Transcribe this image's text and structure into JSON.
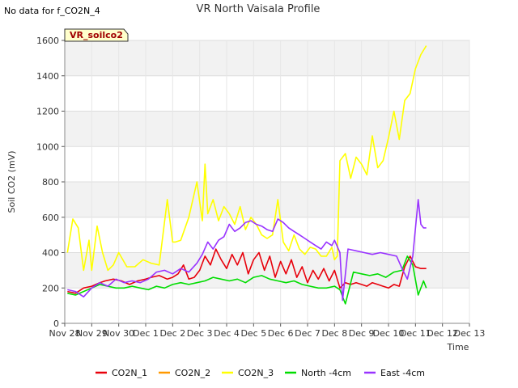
{
  "header": {
    "title": "VR North Vaisala Profile",
    "no_data_note": "No data for f_CO2N_4",
    "badge": "VR_soilco2"
  },
  "chart_data": {
    "type": "line",
    "title": "VR North Vaisala Profile",
    "xlabel": "Time",
    "ylabel": "Soil CO2 (mV)",
    "xlim": [
      "Nov 28",
      "Dec 13"
    ],
    "ylim": [
      0,
      1600
    ],
    "x_ticks": [
      "Nov 28",
      "Nov 29",
      "Nov 30",
      "Dec 1",
      "Dec 2",
      "Dec 3",
      "Dec 4",
      "Dec 5",
      "Dec 6",
      "Dec 7",
      "Dec 8",
      "Dec 9",
      "Dec 10",
      "Dec 11",
      "Dec 12",
      "Dec 13"
    ],
    "y_ticks": [
      0,
      200,
      400,
      600,
      800,
      1000,
      1200,
      1400,
      1600
    ],
    "grid": true,
    "legend_position": "bottom",
    "x_unit": "days since Nov 28",
    "series": [
      {
        "name": "CO2N_1",
        "color": "#e8000b",
        "x": [
          0.1,
          0.4,
          0.7,
          1.0,
          1.3,
          1.5,
          1.8,
          2.1,
          2.4,
          2.7,
          3.0,
          3.2,
          3.5,
          3.8,
          4.0,
          4.2,
          4.4,
          4.6,
          4.8,
          5.0,
          5.2,
          5.4,
          5.6,
          5.8,
          6.0,
          6.2,
          6.4,
          6.6,
          6.8,
          7.0,
          7.2,
          7.4,
          7.6,
          7.8,
          8.0,
          8.2,
          8.4,
          8.6,
          8.8,
          9.0,
          9.2,
          9.4,
          9.6,
          9.8,
          10.0,
          10.2,
          10.4,
          10.6,
          10.8,
          11.0,
          11.2,
          11.4,
          11.6,
          11.8,
          12.0,
          12.2,
          12.4,
          12.6,
          12.8,
          13.0,
          13.2,
          13.4
        ],
        "values": [
          180,
          170,
          200,
          210,
          230,
          240,
          250,
          240,
          220,
          240,
          250,
          260,
          270,
          250,
          260,
          280,
          330,
          250,
          260,
          300,
          380,
          330,
          420,
          360,
          310,
          390,
          330,
          400,
          280,
          360,
          400,
          300,
          380,
          260,
          350,
          280,
          360,
          260,
          320,
          230,
          300,
          250,
          310,
          240,
          300,
          200,
          230,
          220,
          230,
          220,
          210,
          230,
          220,
          210,
          200,
          220,
          210,
          320,
          380,
          320,
          310,
          310
        ]
      },
      {
        "name": "CO2N_2",
        "color": "#ff9900",
        "x": [],
        "values": []
      },
      {
        "name": "CO2N_3",
        "color": "#ffff00",
        "x": [
          0.1,
          0.3,
          0.5,
          0.7,
          0.9,
          1.0,
          1.2,
          1.4,
          1.6,
          1.8,
          2.0,
          2.3,
          2.6,
          2.9,
          3.2,
          3.5,
          3.8,
          4.0,
          4.1,
          4.3,
          4.6,
          4.9,
          5.1,
          5.2,
          5.3,
          5.5,
          5.7,
          5.9,
          6.1,
          6.3,
          6.5,
          6.7,
          6.9,
          7.1,
          7.3,
          7.5,
          7.7,
          7.9,
          8.1,
          8.3,
          8.5,
          8.7,
          8.9,
          9.1,
          9.3,
          9.5,
          9.7,
          9.9,
          10.0,
          10.1,
          10.2,
          10.4,
          10.6,
          10.8,
          11.0,
          11.2,
          11.4,
          11.6,
          11.8,
          12.0,
          12.2,
          12.4,
          12.6,
          12.8,
          13.0,
          13.2,
          13.4
        ],
        "values": [
          400,
          590,
          540,
          300,
          470,
          300,
          550,
          400,
          300,
          330,
          400,
          320,
          320,
          360,
          340,
          330,
          700,
          460,
          460,
          470,
          600,
          800,
          580,
          900,
          620,
          700,
          580,
          660,
          620,
          560,
          660,
          530,
          600,
          560,
          500,
          480,
          500,
          700,
          460,
          410,
          500,
          420,
          390,
          430,
          420,
          380,
          380,
          430,
          360,
          380,
          920,
          960,
          820,
          940,
          900,
          840,
          1060,
          880,
          920,
          1050,
          1200,
          1040,
          1260,
          1300,
          1440,
          1520,
          1570
        ]
      },
      {
        "name": "North -4cm",
        "color": "#00dd00",
        "x": [
          0.1,
          0.4,
          0.7,
          1.0,
          1.3,
          1.6,
          1.9,
          2.2,
          2.5,
          2.8,
          3.1,
          3.4,
          3.7,
          4.0,
          4.3,
          4.6,
          4.9,
          5.2,
          5.5,
          5.8,
          6.1,
          6.4,
          6.7,
          7.0,
          7.3,
          7.6,
          7.9,
          8.2,
          8.5,
          8.8,
          9.1,
          9.4,
          9.7,
          10.0,
          10.2,
          10.4,
          10.7,
          11.0,
          11.3,
          11.6,
          11.9,
          12.2,
          12.5,
          12.7,
          12.9,
          13.1,
          13.3,
          13.4
        ],
        "values": [
          170,
          160,
          180,
          200,
          220,
          210,
          200,
          200,
          210,
          200,
          190,
          210,
          200,
          220,
          230,
          220,
          230,
          240,
          260,
          250,
          240,
          250,
          230,
          260,
          270,
          250,
          240,
          230,
          240,
          220,
          210,
          200,
          200,
          210,
          190,
          110,
          290,
          280,
          270,
          280,
          260,
          290,
          300,
          380,
          330,
          160,
          240,
          200
        ]
      },
      {
        "name": "East -4cm",
        "color": "#9933ff",
        "x": [
          0.1,
          0.4,
          0.7,
          1.0,
          1.3,
          1.6,
          1.9,
          2.2,
          2.5,
          2.8,
          3.1,
          3.4,
          3.7,
          4.0,
          4.3,
          4.6,
          4.9,
          5.1,
          5.3,
          5.5,
          5.7,
          5.9,
          6.1,
          6.3,
          6.5,
          6.7,
          6.9,
          7.1,
          7.3,
          7.5,
          7.7,
          7.9,
          8.1,
          8.3,
          8.5,
          8.7,
          8.9,
          9.1,
          9.3,
          9.5,
          9.7,
          9.9,
          10.0,
          10.2,
          10.3,
          10.5,
          10.8,
          11.1,
          11.4,
          11.7,
          12.0,
          12.3,
          12.5,
          12.7,
          12.9,
          13.1,
          13.2,
          13.3,
          13.4
        ],
        "values": [
          190,
          180,
          150,
          200,
          230,
          210,
          250,
          230,
          240,
          230,
          250,
          290,
          300,
          280,
          310,
          290,
          340,
          390,
          460,
          420,
          470,
          490,
          560,
          520,
          540,
          570,
          580,
          560,
          550,
          530,
          520,
          590,
          570,
          540,
          520,
          500,
          480,
          460,
          440,
          420,
          460,
          440,
          470,
          400,
          130,
          420,
          410,
          400,
          390,
          400,
          390,
          380,
          310,
          250,
          380,
          700,
          560,
          540,
          540
        ]
      }
    ]
  }
}
